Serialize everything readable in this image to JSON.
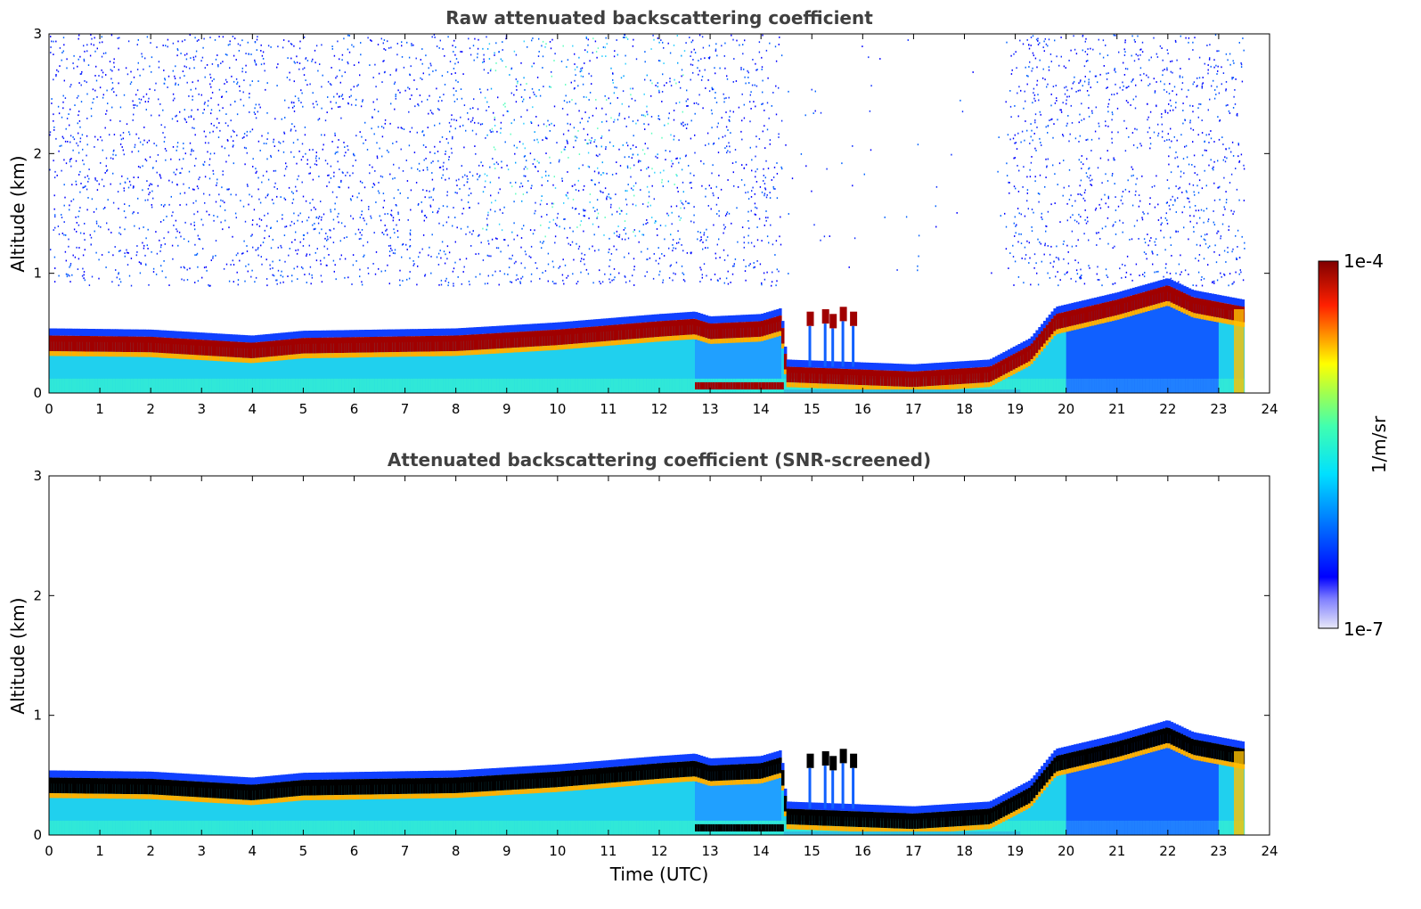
{
  "chart_data": [
    {
      "type": "heatmap",
      "title": "Raw attenuated backscattering coefficient",
      "xlabel": "",
      "ylabel": "Altitude (km)",
      "xlim": [
        0,
        24
      ],
      "ylim": [
        0,
        3
      ],
      "x_ticks": [
        "0",
        "1",
        "2",
        "3",
        "4",
        "5",
        "6",
        "7",
        "8",
        "9",
        "10",
        "11",
        "12",
        "13",
        "14",
        "15",
        "16",
        "17",
        "18",
        "19",
        "20",
        "21",
        "22",
        "23",
        "24"
      ],
      "y_ticks": [
        "0",
        "1",
        "2",
        "3"
      ],
      "color_scale": "log",
      "colorbar_range": [
        "1e-7",
        "1e-4"
      ],
      "color_units": "1/m/sr",
      "layer_top_km": [
        [
          0,
          0.48
        ],
        [
          2,
          0.47
        ],
        [
          4,
          0.42
        ],
        [
          5,
          0.46
        ],
        [
          8,
          0.48
        ],
        [
          10,
          0.53
        ],
        [
          12,
          0.6
        ],
        [
          12.7,
          0.62
        ],
        [
          13,
          0.58
        ],
        [
          14,
          0.6
        ],
        [
          14.4,
          0.65
        ],
        [
          14.5,
          0.22
        ],
        [
          17,
          0.18
        ],
        [
          18.5,
          0.22
        ],
        [
          19.3,
          0.4
        ],
        [
          19.8,
          0.66
        ],
        [
          21,
          0.78
        ],
        [
          22,
          0.9
        ],
        [
          22.5,
          0.8
        ],
        [
          23.5,
          0.72
        ]
      ],
      "screening": "raw"
    },
    {
      "type": "heatmap",
      "title": "Attenuated backscattering coefficient (SNR-screened)",
      "xlabel": "Time (UTC)",
      "ylabel": "Altitude (km)",
      "xlim": [
        0,
        24
      ],
      "ylim": [
        0,
        3
      ],
      "x_ticks": [
        "0",
        "1",
        "2",
        "3",
        "4",
        "5",
        "6",
        "7",
        "8",
        "9",
        "10",
        "11",
        "12",
        "13",
        "14",
        "15",
        "16",
        "17",
        "18",
        "19",
        "20",
        "21",
        "22",
        "23",
        "24"
      ],
      "y_ticks": [
        "0",
        "1",
        "2",
        "3"
      ],
      "color_scale": "log",
      "colorbar_range": [
        "1e-7",
        "1e-4"
      ],
      "color_units": "1/m/sr",
      "layer_top_km": [
        [
          0,
          0.48
        ],
        [
          2,
          0.47
        ],
        [
          4,
          0.42
        ],
        [
          5,
          0.46
        ],
        [
          8,
          0.48
        ],
        [
          10,
          0.53
        ],
        [
          12,
          0.6
        ],
        [
          12.7,
          0.62
        ],
        [
          13,
          0.58
        ],
        [
          14,
          0.6
        ],
        [
          14.4,
          0.65
        ],
        [
          14.5,
          0.22
        ],
        [
          17,
          0.18
        ],
        [
          18.5,
          0.22
        ],
        [
          19.3,
          0.4
        ],
        [
          19.8,
          0.66
        ],
        [
          21,
          0.78
        ],
        [
          22,
          0.9
        ],
        [
          22.5,
          0.8
        ],
        [
          23.5,
          0.72
        ]
      ],
      "screening": "snr"
    }
  ],
  "colorbar": {
    "max_label": "1e-4",
    "min_label": "1e-7",
    "units_label": "1/m/sr"
  }
}
